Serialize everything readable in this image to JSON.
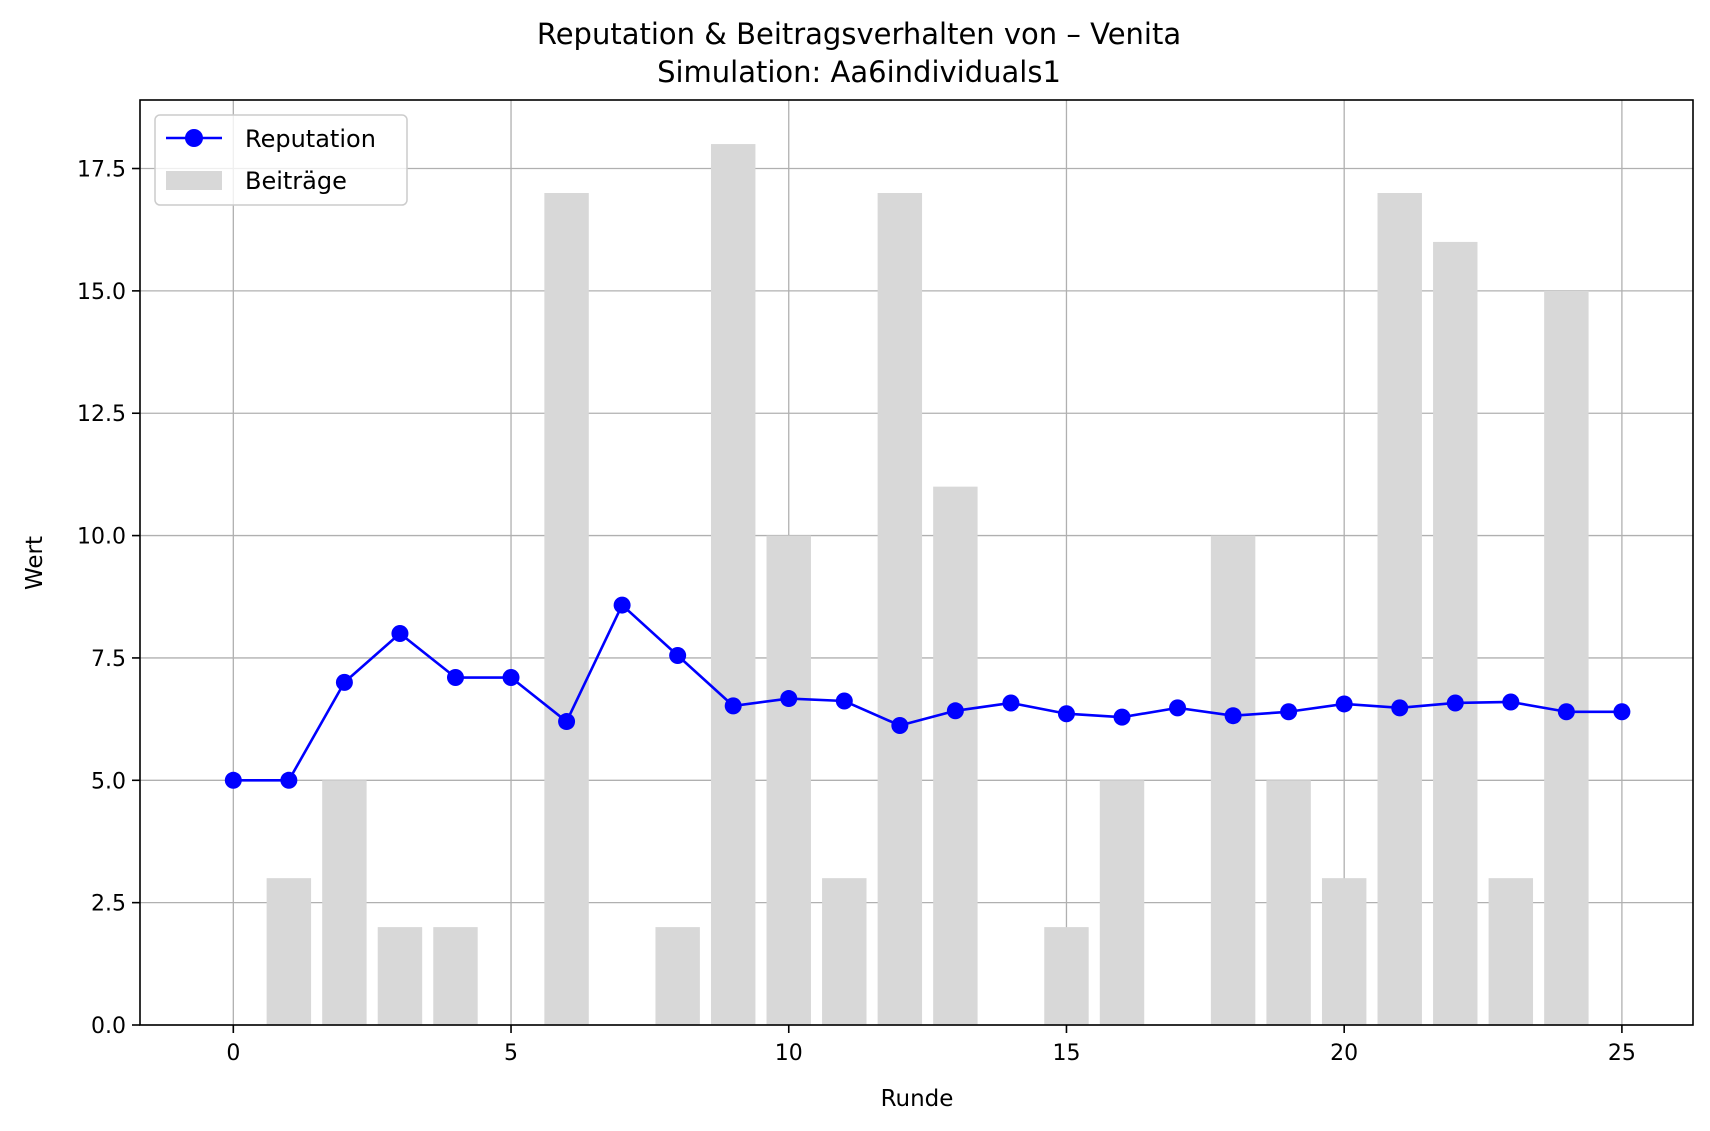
{
  "chart_data": {
    "type": "line+bar",
    "title": "Reputation & Beitragsverhalten von – Venita",
    "subtitle": "Simulation: Aa6individuals1",
    "xlabel": "Runde",
    "ylabel": "Wert",
    "xlim": [
      -1.68,
      26.28
    ],
    "ylim": [
      0,
      18.9
    ],
    "xticks": [
      0,
      5,
      10,
      15,
      20,
      25
    ],
    "xtick_labels": [
      "0",
      "5",
      "10",
      "15",
      "20",
      "25"
    ],
    "yticks": [
      0,
      2.5,
      5,
      7.5,
      10,
      12.5,
      15,
      17.5
    ],
    "ytick_labels": [
      "0.0",
      "2.5",
      "5.0",
      "7.5",
      "10.0",
      "12.5",
      "15.0",
      "17.5"
    ],
    "grid": true,
    "legend_position": "top-left",
    "colors": {
      "reputation": "#0000ff",
      "contributions": "#d8d8d8",
      "grid": "#b0b0b0"
    },
    "series": [
      {
        "name": "Reputation",
        "type": "line",
        "x": [
          0,
          1,
          2,
          3,
          4,
          5,
          6,
          7,
          8,
          9,
          10,
          11,
          12,
          13,
          14,
          15,
          16,
          17,
          18,
          19,
          20,
          21,
          22,
          23,
          24,
          25
        ],
        "values": [
          5.0,
          5.0,
          7.0,
          8.0,
          7.1,
          7.1,
          6.2,
          8.58,
          7.55,
          6.52,
          6.67,
          6.62,
          6.12,
          6.42,
          6.58,
          6.36,
          6.29,
          6.48,
          6.32,
          6.4,
          6.56,
          6.48,
          6.58,
          6.6,
          6.4,
          6.4
        ]
      },
      {
        "name": "Beiträge",
        "type": "bar",
        "x": [
          0,
          1,
          2,
          3,
          4,
          5,
          6,
          7,
          8,
          9,
          10,
          11,
          12,
          13,
          14,
          15,
          16,
          17,
          18,
          19,
          20,
          21,
          22,
          23,
          24,
          25
        ],
        "values": [
          0,
          3,
          5,
          2,
          2,
          0,
          17,
          0,
          2,
          18,
          10,
          3,
          17,
          11,
          0,
          2,
          5,
          0,
          10,
          5,
          3,
          17,
          16,
          3,
          15,
          0
        ]
      }
    ]
  }
}
